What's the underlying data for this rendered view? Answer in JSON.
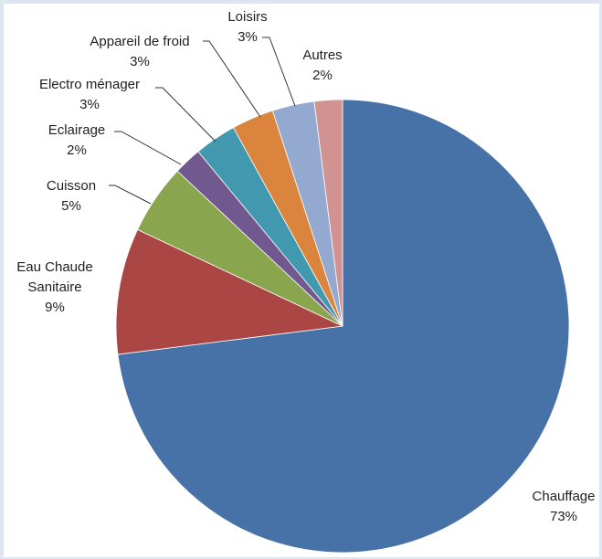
{
  "chart_data": {
    "type": "pie",
    "title": "",
    "slices": [
      {
        "label": "Chauffage",
        "value": 73,
        "display": "73%",
        "color": "#4672a8"
      },
      {
        "label": "Eau Chaude Sanitaire",
        "lines": [
          "Eau Chaude",
          "Sanitaire"
        ],
        "value": 9,
        "display": "9%",
        "color": "#aa4643"
      },
      {
        "label": "Cuisson",
        "value": 5,
        "display": "5%",
        "color": "#89a54e"
      },
      {
        "label": "Eclairage",
        "value": 2,
        "display": "2%",
        "color": "#71588f"
      },
      {
        "label": "Electro ménager",
        "value": 3,
        "display": "3%",
        "color": "#4198af"
      },
      {
        "label": "Appareil de froid",
        "value": 3,
        "display": "3%",
        "color": "#db843d"
      },
      {
        "label": "Loisirs",
        "value": 3,
        "display": "3%",
        "color": "#93a9cf"
      },
      {
        "label": "Autres",
        "value": 2,
        "display": "2%",
        "color": "#d19392"
      }
    ]
  }
}
